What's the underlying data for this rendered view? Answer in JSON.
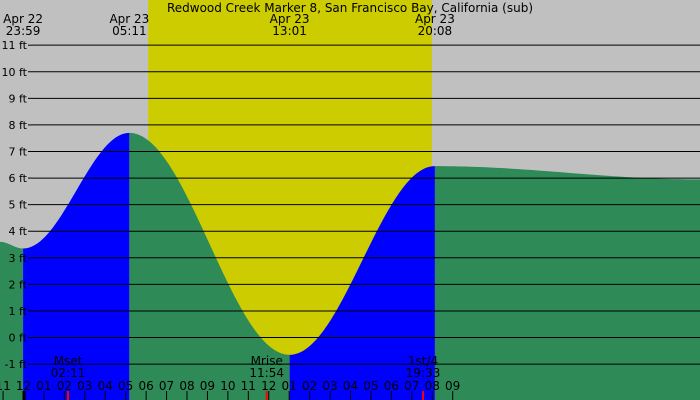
{
  "chart_data": {
    "type": "area",
    "title": "Redwood Creek Marker 8, San Francisco Bay, California (sub)",
    "x_unit": "hours from Apr 23 00:00",
    "xlim": [
      -1.15,
      33.1
    ],
    "y_unit": "ft",
    "ylim": [
      -2.35,
      12.7
    ],
    "grid": true,
    "colors": {
      "background": "#c0c0c0",
      "daylight": "#cccc00",
      "flood": "#0000ff",
      "ebb": "#2e8b57",
      "gridline": "#000000",
      "tick": "#000000",
      "moon_tick": "#ff0000"
    },
    "y_ticks": [
      {
        "value": 11,
        "label": "11 ft"
      },
      {
        "value": 10,
        "label": "10 ft"
      },
      {
        "value": 9,
        "label": "9 ft"
      },
      {
        "value": 8,
        "label": "8 ft"
      },
      {
        "value": 7,
        "label": "7 ft"
      },
      {
        "value": 6,
        "label": "6 ft"
      },
      {
        "value": 5,
        "label": "5 ft"
      },
      {
        "value": 4,
        "label": "4 ft"
      },
      {
        "value": 3,
        "label": "3 ft"
      },
      {
        "value": 2,
        "label": "2 ft"
      },
      {
        "value": 1,
        "label": "1 ft"
      },
      {
        "value": 0,
        "label": "0 ft"
      },
      {
        "value": -1,
        "label": "-1 ft"
      }
    ],
    "x_ticks": [
      {
        "hour": -1,
        "label": "11"
      },
      {
        "hour": 0,
        "label": "12"
      },
      {
        "hour": 1,
        "label": "01"
      },
      {
        "hour": 2,
        "label": "02"
      },
      {
        "hour": 3,
        "label": "03"
      },
      {
        "hour": 4,
        "label": "04"
      },
      {
        "hour": 5,
        "label": "05"
      },
      {
        "hour": 6,
        "label": "06"
      },
      {
        "hour": 7,
        "label": "07"
      },
      {
        "hour": 8,
        "label": "08"
      },
      {
        "hour": 9,
        "label": "09"
      },
      {
        "hour": 10,
        "label": "10"
      },
      {
        "hour": 11,
        "label": "11"
      },
      {
        "hour": 12,
        "label": "12"
      },
      {
        "hour": 13,
        "label": "01"
      },
      {
        "hour": 14,
        "label": "02"
      },
      {
        "hour": 15,
        "label": "03"
      },
      {
        "hour": 16,
        "label": "04"
      },
      {
        "hour": 17,
        "label": "05"
      },
      {
        "hour": 18,
        "label": "06"
      },
      {
        "hour": 19,
        "label": "07"
      },
      {
        "hour": 20,
        "label": "08"
      },
      {
        "hour": 21,
        "label": "09"
      }
    ],
    "daylight": [
      6.1,
      19.98
    ],
    "tide_extremes": [
      {
        "hour": -0.02,
        "height": 3.35,
        "type": "low",
        "date": "Apr 22",
        "time": "23:59"
      },
      {
        "hour": 5.18,
        "height": 7.7,
        "type": "high",
        "date": "Apr 23",
        "time": "05:11"
      },
      {
        "hour": 13.02,
        "height": -0.65,
        "type": "low",
        "date": "Apr 23",
        "time": "13:01"
      },
      {
        "hour": 20.13,
        "height": 6.45,
        "type": "high",
        "date": "Apr 23",
        "time": "20:08"
      }
    ],
    "edge_heights": {
      "start": 3.6,
      "end": 5.95
    },
    "events": [
      {
        "hour": 2.18,
        "name": "Mset",
        "time": "02:11"
      },
      {
        "hour": 11.9,
        "name": "Mrise",
        "time": "11:54"
      },
      {
        "hour": 19.55,
        "name": "1st/4",
        "time": "19:33"
      }
    ]
  }
}
